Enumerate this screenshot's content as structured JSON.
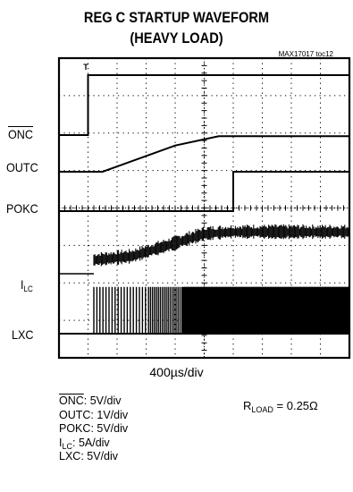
{
  "chart_data": {
    "type": "line",
    "title": "REG C STARTUP WAVEFORM",
    "subtitle": "(HEAVY LOAD)",
    "figure_id": "MAX17017 toc12",
    "time_per_div": "400µs/div",
    "grid": true,
    "trigger_marker": "T",
    "series": [
      {
        "name": "ONC",
        "overline": true,
        "scale": "5V/div",
        "x_div": [
          0,
          1,
          1,
          10
        ],
        "y_div": [
          0,
          0,
          1.6,
          1.6
        ]
      },
      {
        "name": "OUTC",
        "scale": "1V/div",
        "x_div": [
          0,
          1.5,
          4.0,
          5.5,
          10
        ],
        "y_div": [
          0,
          0,
          0.7,
          0.95,
          0.95
        ]
      },
      {
        "name": "POKC",
        "scale": "5V/div",
        "x_div": [
          0,
          6.0,
          6.0,
          10
        ],
        "y_div": [
          0,
          0,
          1.05,
          1.05
        ]
      },
      {
        "name": "I_LC",
        "label_main": "I",
        "label_sub": "LC",
        "scale": "5A/div",
        "x_div": [
          1.2,
          2.5,
          4.0,
          5.0,
          6.0,
          10
        ],
        "y_div": [
          0.35,
          0.45,
          0.8,
          1.05,
          1.1,
          1.1
        ]
      },
      {
        "name": "LXC",
        "scale": "5V/div",
        "x_div": [
          1.2,
          10
        ],
        "y_div": [
          0,
          1.25
        ]
      }
    ],
    "notes": [
      {
        "main": "ONC",
        "overline": true,
        "rest": ": 5V/div"
      },
      {
        "main": "OUTC",
        "rest": ": 1V/div"
      },
      {
        "main": "POKC",
        "rest": ": 5V/div"
      },
      {
        "main": "I",
        "sub": "LC",
        "rest": ": 5A/div"
      },
      {
        "main": "LXC",
        "rest": ": 5V/div"
      }
    ],
    "rload": {
      "main": "R",
      "sub": "LOAD",
      "rest": " = 0.25Ω"
    }
  }
}
